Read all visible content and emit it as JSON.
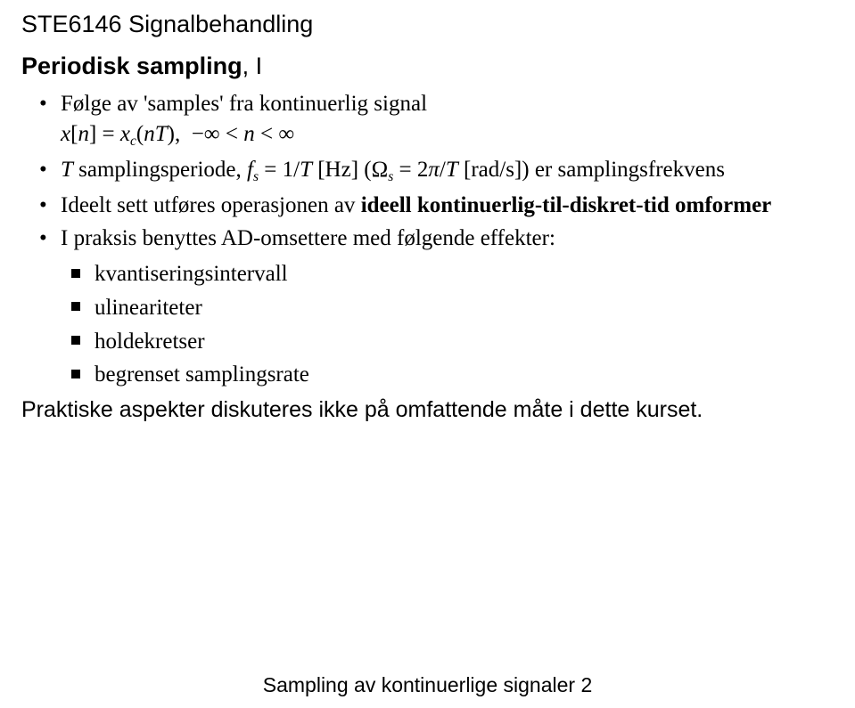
{
  "course_title": "STE6146 Signalbehandling",
  "heading_bold": "Periodisk sampling",
  "heading_rest": ", I",
  "b1_pre": "Følge av 'samples' fra kontinuerlig signal",
  "formula1_html": "<span class='var'>x</span><span class='lbrack'>[</span><span class='var'>n</span><span class='rbrack'>]</span> <span class='op'>=</span> <span class='var'>x</span><span class='sub'>c</span><span class='paren'>(</span><span class='var'>nT</span><span class='paren'>)</span><span class='op'>,</span>&nbsp;&nbsp;<span class='op'>&minus;&infin;</span> <span class='op'>&lt;</span> <span class='var'>n</span> <span class='op'>&lt;</span> <span class='op'>&infin;</span>",
  "b2_html": "<span class='var'>T</span> samplingsperiode, <span class='var'>f</span><span class='sub'>s</span> <span class='op'>=</span> 1/<span class='var'>T</span> [Hz] (&Omega;<span class='sub'>s</span> <span class='op'>=</span> 2<span class='var'>&pi;</span>/<span class='var'>T</span> [rad/s]) er samplingsfrekvens",
  "b3_pre": "Ideelt sett utføres operasjonen av ",
  "b3_bold": "ideell kontinuerlig-til-diskret-tid omformer",
  "b4": "I praksis benyttes AD-omsettere med følgende effekter:",
  "sub_items": [
    "kvantiseringsintervall",
    "ulineariteter",
    "holdekretser",
    "begrenset samplingsrate"
  ],
  "closing": "Praktiske aspekter diskuteres ikke på omfattende måte i dette kurset.",
  "footer": "Sampling av kontinuerlige signaler 2",
  "colors": {
    "text": "#000000",
    "bg": "#ffffff"
  }
}
